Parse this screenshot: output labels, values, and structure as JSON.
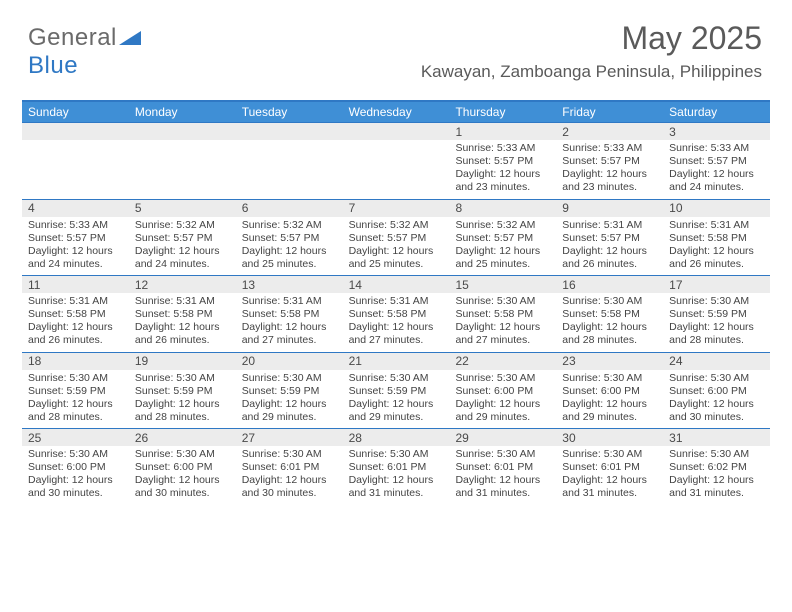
{
  "logo": {
    "part1": "General",
    "part2": "Blue"
  },
  "title": "May 2025",
  "subtitle": "Kawayan, Zamboanga Peninsula, Philippines",
  "colors": {
    "accent": "#3f8fd6",
    "border": "#2f78c4",
    "stripe": "#ececec",
    "text": "#444444",
    "title_text": "#5a5a5a"
  },
  "dow": [
    "Sunday",
    "Monday",
    "Tuesday",
    "Wednesday",
    "Thursday",
    "Friday",
    "Saturday"
  ],
  "weeks": [
    {
      "nums": [
        "",
        "",
        "",
        "",
        "1",
        "2",
        "3"
      ],
      "cells": [
        null,
        null,
        null,
        null,
        {
          "sunrise": "5:33 AM",
          "sunset": "5:57 PM",
          "daylight": "12 hours and 23 minutes."
        },
        {
          "sunrise": "5:33 AM",
          "sunset": "5:57 PM",
          "daylight": "12 hours and 23 minutes."
        },
        {
          "sunrise": "5:33 AM",
          "sunset": "5:57 PM",
          "daylight": "12 hours and 24 minutes."
        }
      ]
    },
    {
      "nums": [
        "4",
        "5",
        "6",
        "7",
        "8",
        "9",
        "10"
      ],
      "cells": [
        {
          "sunrise": "5:33 AM",
          "sunset": "5:57 PM",
          "daylight": "12 hours and 24 minutes."
        },
        {
          "sunrise": "5:32 AM",
          "sunset": "5:57 PM",
          "daylight": "12 hours and 24 minutes."
        },
        {
          "sunrise": "5:32 AM",
          "sunset": "5:57 PM",
          "daylight": "12 hours and 25 minutes."
        },
        {
          "sunrise": "5:32 AM",
          "sunset": "5:57 PM",
          "daylight": "12 hours and 25 minutes."
        },
        {
          "sunrise": "5:32 AM",
          "sunset": "5:57 PM",
          "daylight": "12 hours and 25 minutes."
        },
        {
          "sunrise": "5:31 AM",
          "sunset": "5:57 PM",
          "daylight": "12 hours and 26 minutes."
        },
        {
          "sunrise": "5:31 AM",
          "sunset": "5:58 PM",
          "daylight": "12 hours and 26 minutes."
        }
      ]
    },
    {
      "nums": [
        "11",
        "12",
        "13",
        "14",
        "15",
        "16",
        "17"
      ],
      "cells": [
        {
          "sunrise": "5:31 AM",
          "sunset": "5:58 PM",
          "daylight": "12 hours and 26 minutes."
        },
        {
          "sunrise": "5:31 AM",
          "sunset": "5:58 PM",
          "daylight": "12 hours and 26 minutes."
        },
        {
          "sunrise": "5:31 AM",
          "sunset": "5:58 PM",
          "daylight": "12 hours and 27 minutes."
        },
        {
          "sunrise": "5:31 AM",
          "sunset": "5:58 PM",
          "daylight": "12 hours and 27 minutes."
        },
        {
          "sunrise": "5:30 AM",
          "sunset": "5:58 PM",
          "daylight": "12 hours and 27 minutes."
        },
        {
          "sunrise": "5:30 AM",
          "sunset": "5:58 PM",
          "daylight": "12 hours and 28 minutes."
        },
        {
          "sunrise": "5:30 AM",
          "sunset": "5:59 PM",
          "daylight": "12 hours and 28 minutes."
        }
      ]
    },
    {
      "nums": [
        "18",
        "19",
        "20",
        "21",
        "22",
        "23",
        "24"
      ],
      "cells": [
        {
          "sunrise": "5:30 AM",
          "sunset": "5:59 PM",
          "daylight": "12 hours and 28 minutes."
        },
        {
          "sunrise": "5:30 AM",
          "sunset": "5:59 PM",
          "daylight": "12 hours and 28 minutes."
        },
        {
          "sunrise": "5:30 AM",
          "sunset": "5:59 PM",
          "daylight": "12 hours and 29 minutes."
        },
        {
          "sunrise": "5:30 AM",
          "sunset": "5:59 PM",
          "daylight": "12 hours and 29 minutes."
        },
        {
          "sunrise": "5:30 AM",
          "sunset": "6:00 PM",
          "daylight": "12 hours and 29 minutes."
        },
        {
          "sunrise": "5:30 AM",
          "sunset": "6:00 PM",
          "daylight": "12 hours and 29 minutes."
        },
        {
          "sunrise": "5:30 AM",
          "sunset": "6:00 PM",
          "daylight": "12 hours and 30 minutes."
        }
      ]
    },
    {
      "nums": [
        "25",
        "26",
        "27",
        "28",
        "29",
        "30",
        "31"
      ],
      "cells": [
        {
          "sunrise": "5:30 AM",
          "sunset": "6:00 PM",
          "daylight": "12 hours and 30 minutes."
        },
        {
          "sunrise": "5:30 AM",
          "sunset": "6:00 PM",
          "daylight": "12 hours and 30 minutes."
        },
        {
          "sunrise": "5:30 AM",
          "sunset": "6:01 PM",
          "daylight": "12 hours and 30 minutes."
        },
        {
          "sunrise": "5:30 AM",
          "sunset": "6:01 PM",
          "daylight": "12 hours and 31 minutes."
        },
        {
          "sunrise": "5:30 AM",
          "sunset": "6:01 PM",
          "daylight": "12 hours and 31 minutes."
        },
        {
          "sunrise": "5:30 AM",
          "sunset": "6:01 PM",
          "daylight": "12 hours and 31 minutes."
        },
        {
          "sunrise": "5:30 AM",
          "sunset": "6:02 PM",
          "daylight": "12 hours and 31 minutes."
        }
      ]
    }
  ],
  "labels": {
    "sunrise": "Sunrise:",
    "sunset": "Sunset:",
    "daylight": "Daylight:"
  }
}
